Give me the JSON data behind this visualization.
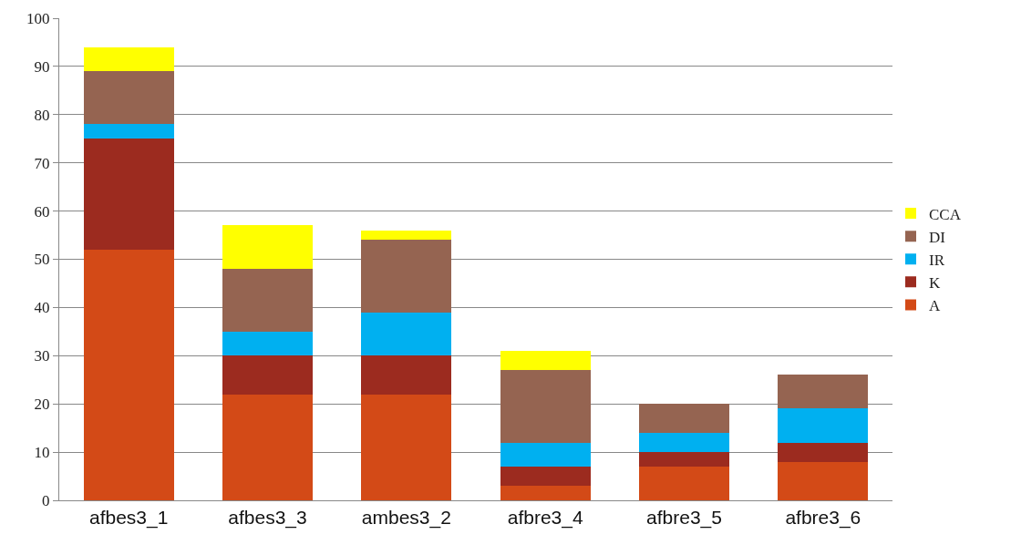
{
  "chart_data": {
    "type": "bar",
    "stacked": true,
    "categories": [
      "afbes3_1",
      "afbes3_3",
      "ambes3_2",
      "afbre3_4",
      "afbre3_5",
      "afbre3_6"
    ],
    "series": [
      {
        "name": "A",
        "color": "#d34a17",
        "values": [
          52,
          22,
          22,
          3,
          7,
          8
        ]
      },
      {
        "name": "K",
        "color": "#9c2b1f",
        "values": [
          23,
          8,
          8,
          4,
          3,
          4
        ]
      },
      {
        "name": "IR",
        "color": "#00b0f0",
        "values": [
          3,
          5,
          9,
          5,
          4,
          7
        ]
      },
      {
        "name": "DI",
        "color": "#956451",
        "values": [
          11,
          13,
          15,
          15,
          6,
          7
        ]
      },
      {
        "name": "CCA",
        "color": "#ffff00",
        "values": [
          5,
          9,
          2,
          4,
          0,
          0
        ]
      }
    ],
    "ylim": [
      0,
      100
    ],
    "yticks": [
      0,
      10,
      20,
      30,
      40,
      50,
      60,
      70,
      80,
      90,
      100
    ],
    "grid": "y",
    "legend": "right"
  }
}
